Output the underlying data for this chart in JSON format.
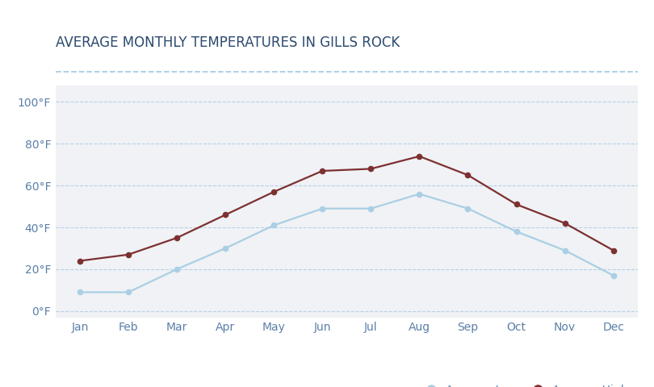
{
  "title": "AVERAGE MONTHLY TEMPERATURES IN GILLS ROCK",
  "months": [
    "Jan",
    "Feb",
    "Mar",
    "Apr",
    "May",
    "Jun",
    "Jul",
    "Aug",
    "Sep",
    "Oct",
    "Nov",
    "Dec"
  ],
  "avg_low": [
    9,
    9,
    20,
    30,
    41,
    49,
    49,
    56,
    49,
    38,
    29,
    17
  ],
  "avg_high": [
    24,
    27,
    35,
    46,
    57,
    67,
    68,
    74,
    65,
    51,
    42,
    29
  ],
  "low_color": "#aacfe4",
  "high_color": "#7d3030",
  "plot_bg_color": "#f0f2f5",
  "outer_bg_color": "#ffffff",
  "title_color": "#2c4a6e",
  "tick_label_color": "#5a7fa8",
  "grid_color": "#b8d0e8",
  "separator_color": "#a8cce0",
  "ylim": [
    -3,
    108
  ],
  "yticks": [
    0,
    20,
    40,
    60,
    80,
    100
  ],
  "ytick_labels": [
    "0°F",
    "20°F",
    "40°F",
    "60°F",
    "80°F",
    "100°F"
  ],
  "title_fontsize": 12,
  "tick_fontsize": 10,
  "legend_fontsize": 10
}
